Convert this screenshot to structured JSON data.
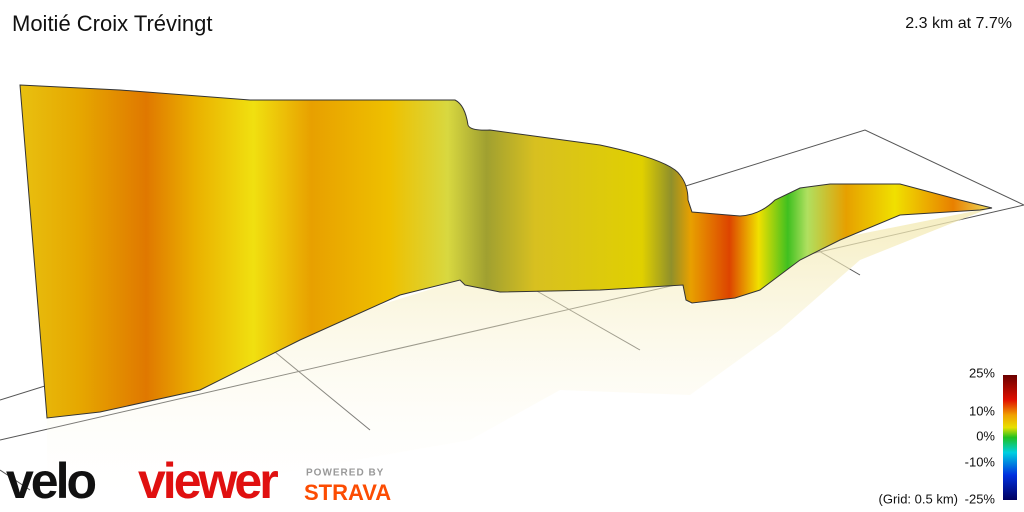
{
  "header": {
    "title": "Moitié Croix Trévingt",
    "summary": "2.3 km at 7.7%"
  },
  "legend": {
    "labels": [
      "25%",
      "10%",
      "0%",
      "-10%",
      "-25%"
    ],
    "note": "(Grid: 0.5 km)"
  },
  "branding": {
    "logo_part1": "velo",
    "logo_part2": "viewer",
    "powered_by": "POWERED BY",
    "partner": "STRAVA"
  }
}
